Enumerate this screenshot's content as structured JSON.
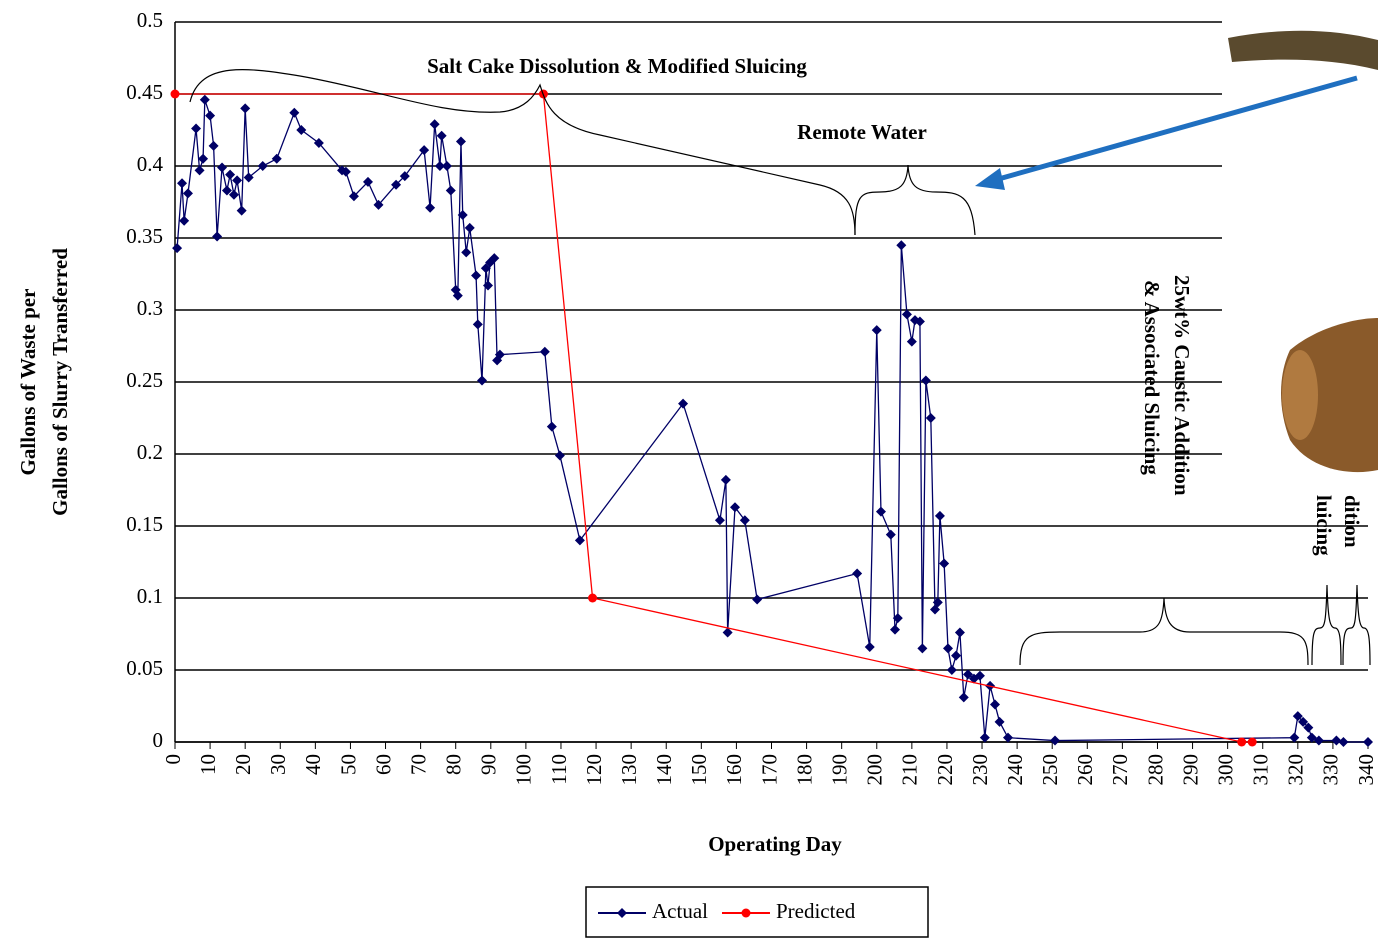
{
  "chart_data": {
    "type": "line",
    "x_label": "Operating Day",
    "y_label": [
      "Gallons of Waste per",
      "Gallons of Slurry Transferred"
    ],
    "annotations": [
      "Salt Cake Dissolution & Modified Sluicing",
      "Remote Water",
      "25wt% Caustic Addition",
      "& Associated Sluicing",
      "dition",
      "luicing"
    ],
    "xlim": [
      0,
      340
    ],
    "xticks": [
      0,
      10,
      20,
      30,
      40,
      50,
      60,
      70,
      80,
      90,
      100,
      110,
      120,
      130,
      140,
      150,
      160,
      170,
      180,
      190,
      200,
      210,
      220,
      230,
      240,
      250,
      260,
      270,
      280,
      290,
      300,
      310,
      320,
      330,
      340
    ],
    "ylim": [
      0,
      0.5
    ],
    "yticks": [
      0,
      0.05,
      0.1,
      0.15,
      0.2,
      0.25,
      0.3,
      0.35,
      0.4,
      0.45,
      0.5
    ],
    "grid": true,
    "legend": "bottom",
    "series": [
      {
        "name": "Actual",
        "color": "#000066",
        "marker": "diamond",
        "x": [
          0.6,
          2,
          2.6,
          3.7,
          6,
          7,
          8,
          8.5,
          10,
          11,
          12,
          13.4,
          14.8,
          15.7,
          16.8,
          17.7,
          19,
          20,
          21,
          25,
          29,
          34,
          36,
          41,
          47.6,
          48.7,
          51,
          55,
          58,
          63,
          65.5,
          71,
          72.7,
          74,
          75.5,
          76,
          77.5,
          78.6,
          80,
          80.6,
          81.5,
          82,
          83,
          84,
          85.8,
          86.3,
          87.5,
          88.6,
          89.2,
          89.8,
          91,
          91.8,
          92.6,
          105.4,
          107.4,
          109.7,
          115.4,
          144.8,
          155.3,
          157,
          157.5,
          159.6,
          162.4,
          165.9,
          194.4,
          198,
          200,
          201.2,
          204,
          205.2,
          206,
          207,
          208.6,
          210,
          210.9,
          212.3,
          213,
          214,
          215.4,
          216.6,
          217.4,
          218,
          219.2,
          220.3,
          221.4,
          222.6,
          223.7,
          224.8,
          226,
          227.7,
          229.4,
          230.8,
          232.3,
          233.7,
          235,
          237.4,
          250.8,
          319,
          320,
          321.5,
          323,
          324,
          326,
          331,
          333,
          340
        ],
        "values": [
          0.343,
          0.388,
          0.362,
          0.381,
          0.426,
          0.397,
          0.405,
          0.446,
          0.435,
          0.414,
          0.351,
          0.399,
          0.383,
          0.394,
          0.38,
          0.39,
          0.369,
          0.44,
          0.392,
          0.4,
          0.405,
          0.437,
          0.425,
          0.416,
          0.397,
          0.396,
          0.379,
          0.389,
          0.373,
          0.387,
          0.393,
          0.411,
          0.371,
          0.429,
          0.4,
          0.421,
          0.4,
          0.383,
          0.314,
          0.31,
          0.417,
          0.366,
          0.34,
          0.357,
          0.324,
          0.29,
          0.251,
          0.329,
          0.317,
          0.333,
          0.336,
          0.265,
          0.269,
          0.271,
          0.219,
          0.199,
          0.14,
          0.235,
          0.154,
          0.182,
          0.076,
          0.163,
          0.154,
          0.099,
          0.117,
          0.066,
          0.286,
          0.16,
          0.144,
          0.078,
          0.086,
          0.345,
          0.297,
          0.278,
          0.293,
          0.292,
          0.065,
          0.251,
          0.225,
          0.092,
          0.097,
          0.157,
          0.124,
          0.065,
          0.05,
          0.06,
          0.076,
          0.031,
          0.047,
          0.044,
          0.046,
          0.003,
          0.039,
          0.026,
          0.014,
          0.003,
          0.001,
          0.003,
          0.018,
          0.014,
          0.01,
          0.003,
          0.001,
          0.001,
          0,
          0
        ]
      },
      {
        "name": "Predicted",
        "color": "#ff0000",
        "marker": "circle",
        "x": [
          0,
          105,
          119,
          304,
          307
        ],
        "values": [
          0.45,
          0.45,
          0.1,
          0,
          0
        ]
      }
    ]
  }
}
